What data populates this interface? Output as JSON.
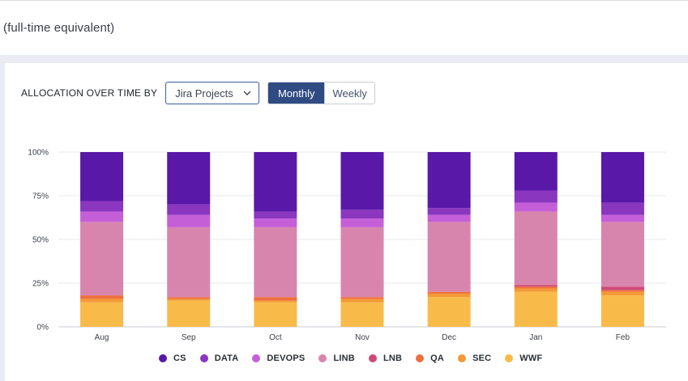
{
  "header": {
    "subtitle": "(full-time equivalent)"
  },
  "controls": {
    "label": "ALLOCATION OVER TIME BY",
    "select_value": "Jira Projects",
    "toggle": {
      "monthly": "Monthly",
      "weekly": "Weekly",
      "active": "Monthly"
    }
  },
  "chart_data": {
    "type": "bar",
    "stacked": true,
    "categories": [
      "Aug",
      "Sep",
      "Oct",
      "Nov",
      "Dec",
      "Jan",
      "Feb"
    ],
    "y_ticks": [
      "0%",
      "25%",
      "50%",
      "75%",
      "100%"
    ],
    "ylim": [
      0,
      100
    ],
    "grid": true,
    "legend_position": "bottom",
    "series": [
      {
        "name": "WWF",
        "color": "#f8bb4a",
        "values": [
          14,
          15,
          14,
          14,
          17,
          20,
          18
        ]
      },
      {
        "name": "SEC",
        "color": "#f39a37",
        "values": [
          2,
          1,
          1,
          2,
          2,
          2,
          2
        ]
      },
      {
        "name": "QA",
        "color": "#ee6f3e",
        "values": [
          2,
          1,
          2,
          1,
          1,
          1,
          1
        ]
      },
      {
        "name": "LNB",
        "color": "#cf4a78",
        "values": [
          0,
          0,
          0,
          0,
          0,
          1,
          2
        ]
      },
      {
        "name": "LINB",
        "color": "#d885ae",
        "values": [
          42,
          40,
          40,
          40,
          40,
          42,
          37
        ]
      },
      {
        "name": "DEVOPS",
        "color": "#c55fd8",
        "values": [
          6,
          7,
          5,
          5,
          4,
          5,
          4
        ]
      },
      {
        "name": "DATA",
        "color": "#8a36bf",
        "values": [
          6,
          6,
          4,
          5,
          4,
          7,
          7
        ]
      },
      {
        "name": "CS",
        "color": "#5a18a8",
        "values": [
          28,
          30,
          34,
          33,
          32,
          22,
          29
        ]
      }
    ],
    "legend_order": [
      "CS",
      "DATA",
      "DEVOPS",
      "LINB",
      "LNB",
      "QA",
      "SEC",
      "WWF"
    ]
  }
}
